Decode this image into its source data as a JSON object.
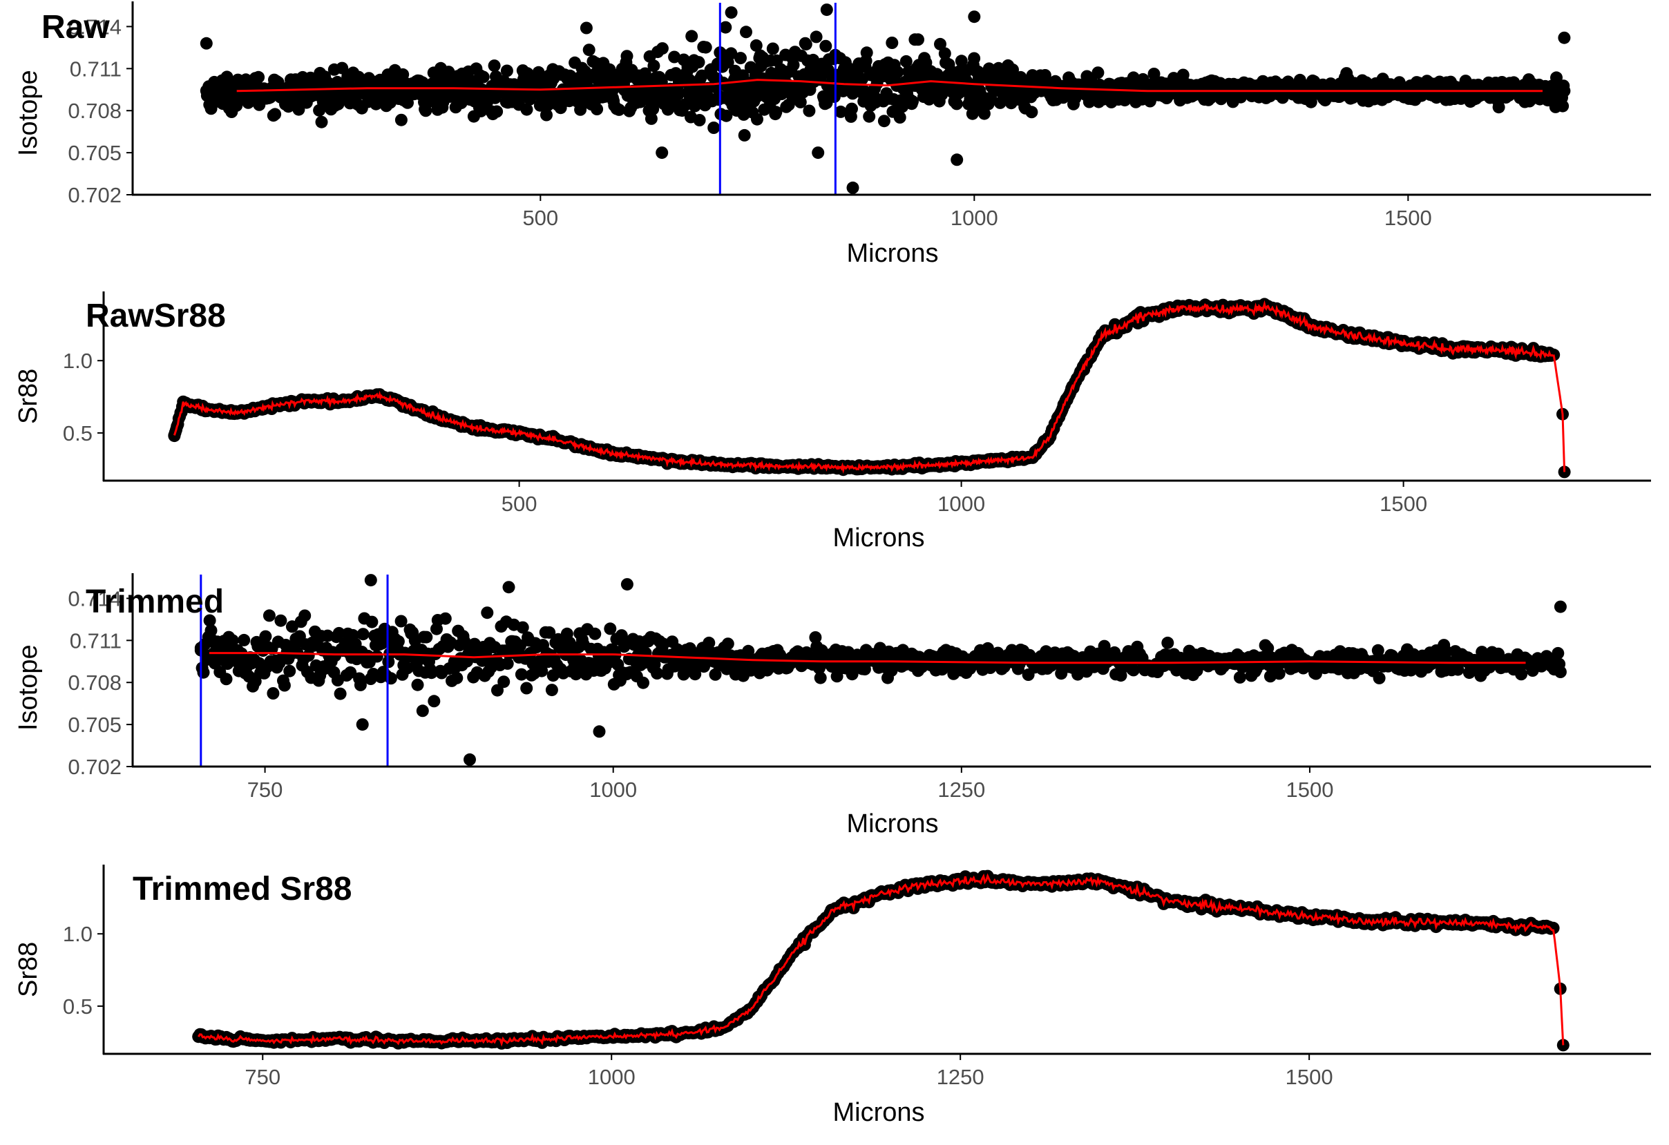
{
  "colors": {
    "points": "#000000",
    "trend": "#ff0000",
    "markers": "#0000ff",
    "axis": "#000000",
    "tick_text": "#4d4d4d"
  },
  "chart_data": [
    {
      "id": "raw",
      "type": "scatter",
      "title": "Raw",
      "xlabel": "Microns",
      "ylabel": "Isotope",
      "xlim": [
        30,
        1780
      ],
      "ylim": [
        0.702,
        0.7155
      ],
      "xticks": [
        500,
        1000,
        1500
      ],
      "yticks": [
        0.702,
        0.705,
        0.708,
        0.711,
        0.714
      ],
      "ytick_labels": [
        "0.702",
        "0.705",
        "0.708",
        "0.711",
        "0.714"
      ],
      "vlines": [
        707,
        840
      ],
      "grid": false,
      "series": [
        {
          "kind": "points",
          "x_range": [
            115,
            1680
          ],
          "profile": [
            [
              115,
              0.7093,
              0.0009
            ],
            [
              500,
              0.7095,
              0.0013
            ],
            [
              600,
              0.7097,
              0.0017
            ],
            [
              700,
              0.71,
              0.0022
            ],
            [
              850,
              0.71,
              0.0021
            ],
            [
              1000,
              0.7099,
              0.0018
            ],
            [
              1050,
              0.7098,
              0.0012
            ],
            [
              1100,
              0.7095,
              0.0007
            ],
            [
              1680,
              0.7094,
              0.0006
            ]
          ],
          "outliers": [
            [
              115,
              0.7128
            ],
            [
              1680,
              0.7132
            ],
            [
              860,
              0.7025
            ],
            [
              980,
              0.7045
            ],
            [
              640,
              0.705
            ],
            [
              820,
              0.705
            ],
            [
              553,
              0.7139
            ],
            [
              720,
              0.715
            ],
            [
              830,
              0.7152
            ],
            [
              1000,
              0.7147
            ]
          ]
        },
        {
          "kind": "smooth",
          "x": [
            150,
            300,
            400,
            500,
            600,
            700,
            750,
            800,
            850,
            900,
            950,
            1000,
            1100,
            1200,
            1400,
            1600,
            1655
          ],
          "y": [
            0.7094,
            0.7096,
            0.7096,
            0.7095,
            0.7097,
            0.7099,
            0.7102,
            0.7101,
            0.7099,
            0.7098,
            0.7101,
            0.7099,
            0.7096,
            0.7094,
            0.7094,
            0.7094,
            0.7094
          ]
        }
      ]
    },
    {
      "id": "rawsr88",
      "type": "line",
      "title": "RawSr88",
      "xlabel": "Microns",
      "ylabel": "Sr88",
      "xlim": [
        30,
        1780
      ],
      "ylim": [
        0.17,
        1.45
      ],
      "xticks": [
        500,
        1000,
        1500
      ],
      "yticks": [
        0.5,
        1.0
      ],
      "ytick_labels": [
        "0.5",
        "1.0"
      ],
      "vlines": [],
      "grid": false,
      "series": [
        {
          "kind": "profile",
          "x": [
            110,
            120,
            150,
            180,
            200,
            250,
            300,
            340,
            360,
            400,
            450,
            500,
            550,
            600,
            700,
            800,
            900,
            1000,
            1080,
            1100,
            1130,
            1160,
            1200,
            1250,
            1300,
            1350,
            1400,
            1450,
            1500,
            1550,
            1600,
            1650,
            1670,
            1680,
            1682
          ],
          "y": [
            0.48,
            0.7,
            0.66,
            0.64,
            0.66,
            0.72,
            0.72,
            0.76,
            0.72,
            0.62,
            0.53,
            0.5,
            0.44,
            0.36,
            0.29,
            0.27,
            0.26,
            0.29,
            0.33,
            0.48,
            0.87,
            1.17,
            1.3,
            1.37,
            1.35,
            1.36,
            1.23,
            1.17,
            1.12,
            1.08,
            1.08,
            1.05,
            1.04,
            0.63,
            0.23
          ]
        }
      ]
    },
    {
      "id": "trimmed",
      "type": "scatter",
      "title": "Trimmed",
      "xlabel": "Microns",
      "ylabel": "Isotope",
      "xlim": [
        655,
        1745
      ],
      "ylim": [
        0.702,
        0.7155
      ],
      "xticks": [
        750,
        1000,
        1250,
        1500
      ],
      "yticks": [
        0.702,
        0.705,
        0.708,
        0.711,
        0.714
      ],
      "ytick_labels": [
        "0.702",
        "0.705",
        "0.708",
        "0.711",
        "0.714"
      ],
      "vlines": [
        704,
        838
      ],
      "grid": false,
      "series": [
        {
          "kind": "points",
          "x_range": [
            704,
            1680
          ],
          "profile": [
            [
              704,
              0.7102,
              0.0019
            ],
            [
              850,
              0.71,
              0.0021
            ],
            [
              1000,
              0.7099,
              0.0018
            ],
            [
              1050,
              0.7098,
              0.0012
            ],
            [
              1100,
              0.7096,
              0.0008
            ],
            [
              1680,
              0.7094,
              0.0006
            ]
          ],
          "outliers": [
            [
              704,
              0.7103
            ],
            [
              1680,
              0.7134
            ],
            [
              897,
              0.7025
            ],
            [
              990,
              0.7045
            ],
            [
              820,
              0.705
            ],
            [
              826,
              0.7153
            ],
            [
              925,
              0.7148
            ],
            [
              1010,
              0.715
            ]
          ]
        },
        {
          "kind": "smooth",
          "x": [
            710,
            760,
            800,
            850,
            900,
            950,
            1000,
            1050,
            1100,
            1150,
            1200,
            1300,
            1400,
            1500,
            1600,
            1655
          ],
          "y": [
            0.7101,
            0.7101,
            0.71,
            0.71,
            0.7098,
            0.71,
            0.71,
            0.7098,
            0.7096,
            0.7095,
            0.7095,
            0.7094,
            0.7094,
            0.7095,
            0.7094,
            0.7094
          ]
        }
      ]
    },
    {
      "id": "trimmedsr88",
      "type": "line",
      "title": "Trimmed Sr88",
      "xlabel": "Microns",
      "ylabel": "Sr88",
      "xlim": [
        636,
        1745
      ],
      "ylim": [
        0.17,
        1.45
      ],
      "xticks": [
        750,
        1000,
        1250,
        1500
      ],
      "yticks": [
        0.5,
        1.0
      ],
      "ytick_labels": [
        "0.5",
        "1.0"
      ],
      "vlines": [],
      "grid": false,
      "series": [
        {
          "kind": "profile",
          "x": [
            704,
            750,
            800,
            850,
            900,
            950,
            1000,
            1050,
            1080,
            1100,
            1130,
            1160,
            1200,
            1250,
            1300,
            1350,
            1400,
            1450,
            1500,
            1550,
            1600,
            1650,
            1675,
            1680,
            1682
          ],
          "y": [
            0.29,
            0.26,
            0.27,
            0.26,
            0.26,
            0.27,
            0.29,
            0.31,
            0.35,
            0.48,
            0.87,
            1.17,
            1.3,
            1.37,
            1.35,
            1.36,
            1.23,
            1.17,
            1.12,
            1.08,
            1.08,
            1.05,
            1.04,
            0.62,
            0.23
          ]
        }
      ]
    }
  ]
}
